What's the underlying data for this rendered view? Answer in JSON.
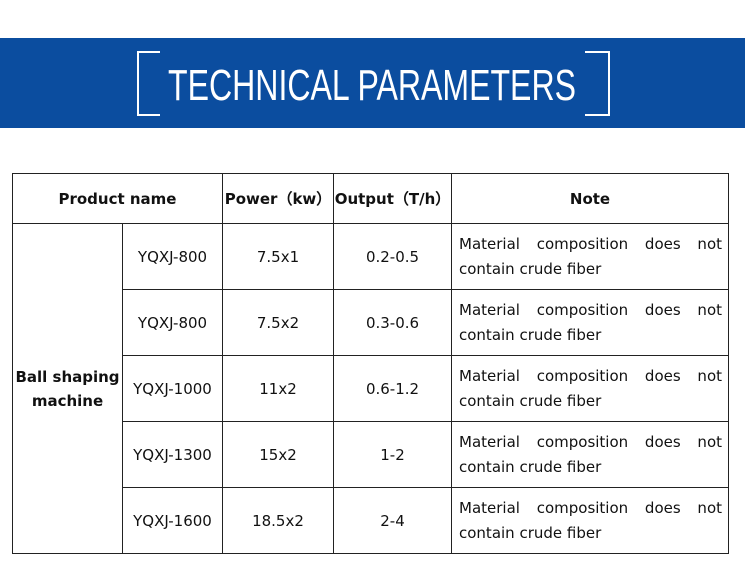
{
  "header": {
    "title": "TECHNICAL PARAMETERS"
  },
  "table": {
    "columns": [
      "Product name",
      "Power（kw）",
      "Output（T/h）",
      "Note"
    ],
    "group": "Ball shaping machine",
    "rows": [
      [
        "YQXJ-800",
        "7.5x1",
        "0.2-0.5",
        "Material composition does not contain crude fiber"
      ],
      [
        "YQXJ-800",
        "7.5x2",
        "0.3-0.6",
        "Material composition does not contain crude fiber"
      ],
      [
        "YQXJ-1000",
        "11x2",
        "0.6-1.2",
        "Material composition does not contain crude fiber"
      ],
      [
        "YQXJ-1300",
        "15x2",
        "1-2",
        "Material composition does not contain crude fiber"
      ],
      [
        "YQXJ-1600",
        "18.5x2",
        "2-4",
        "Material composition does not contain crude fiber"
      ]
    ]
  }
}
